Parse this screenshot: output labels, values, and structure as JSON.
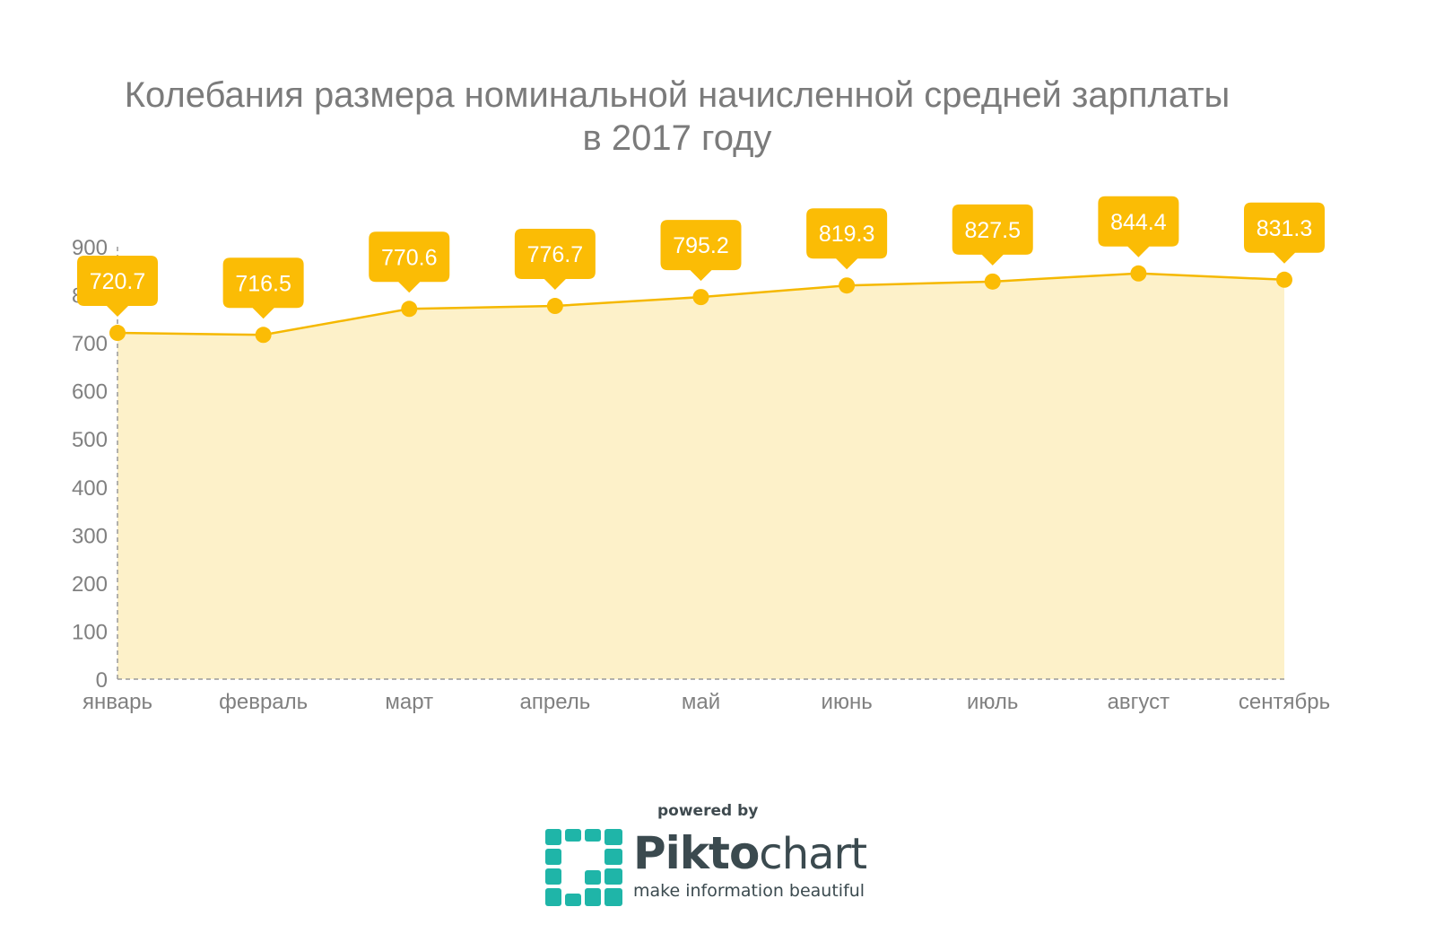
{
  "chart_data": {
    "type": "area",
    "title_line1": "Колебания размера номинальной начисленной средней зарплаты",
    "title_line2": "в 2017 году",
    "categories": [
      "январь",
      "февраль",
      "март",
      "апрель",
      "май",
      "июнь",
      "июль",
      "август",
      "сентябрь"
    ],
    "values": [
      720.7,
      716.5,
      770.6,
      776.7,
      795.2,
      819.3,
      827.5,
      844.4,
      831.3
    ],
    "value_labels": [
      "720.7",
      "716.5",
      "770.6",
      "776.7",
      "795.2",
      "819.3",
      "827.5",
      "844.4",
      "831.3"
    ],
    "yticks": [
      "0",
      "100",
      "200",
      "300",
      "400",
      "500",
      "600",
      "700",
      "800",
      "900"
    ],
    "ylim": [
      0,
      900
    ],
    "xlabel": "",
    "ylabel": "",
    "grid": false,
    "colors": {
      "line": "#f5b800",
      "fill": "#fdf1c9",
      "marker": "#fbbc05",
      "label_bg": "#fbbc05",
      "label_text": "#ffffff",
      "axis_text": "#808080"
    }
  },
  "footer": {
    "powered_by": "powered by",
    "brand_bold": "Pikto",
    "brand_light": "chart",
    "tagline": "make information beautiful",
    "logo_color": "#1fb5a8"
  }
}
